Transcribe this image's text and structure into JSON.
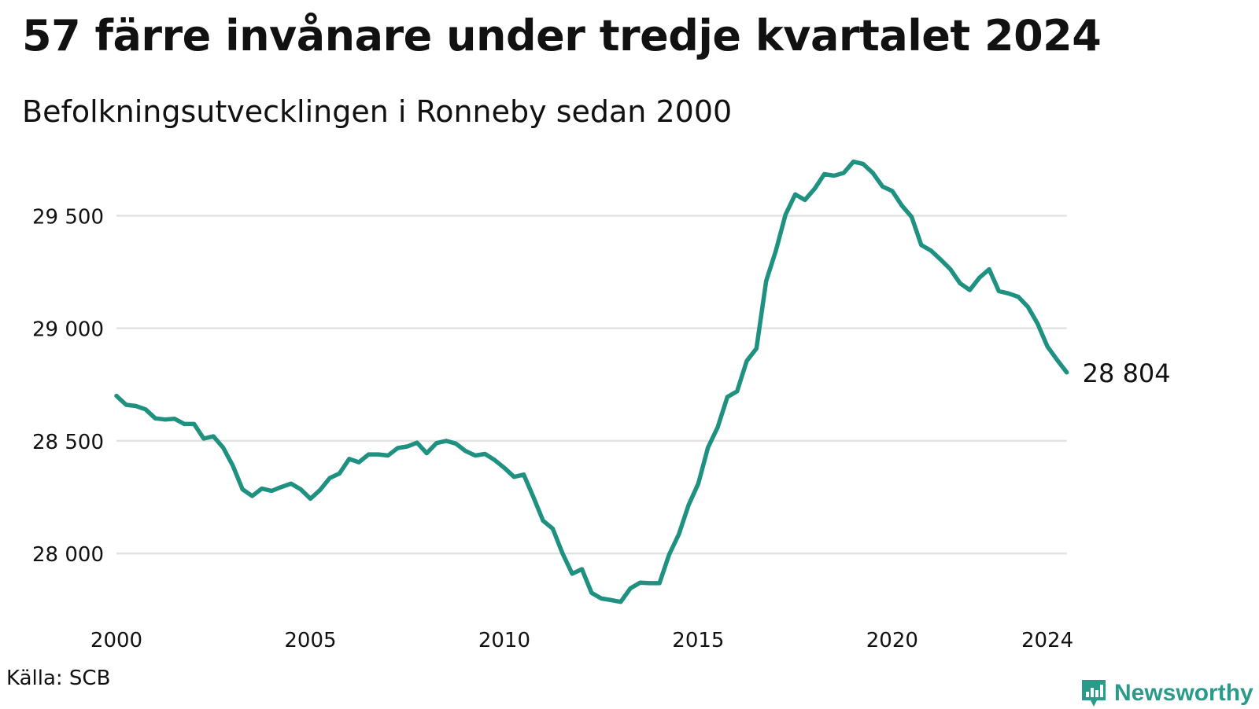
{
  "title": "57 färre invånare under tredje kvartalet 2024",
  "subtitle": "Befolkningsutvecklingen i Ronneby sedan 2000",
  "source": "Källa: SCB",
  "brand": {
    "name": "Newsworthy",
    "icon": "bar-chart-icon",
    "color": "#2a9a8a"
  },
  "colors": {
    "line": "#1f9181",
    "grid": "#e2e2e2",
    "text": "#111111"
  },
  "chart_data": {
    "type": "line",
    "title": "57 färre invånare under tredje kvartalet 2024",
    "subtitle": "Befolkningsutvecklingen i Ronneby sedan 2000",
    "xlabel": "",
    "ylabel": "",
    "xlim": [
      2000,
      2024.75
    ],
    "ylim": [
      27700,
      29760
    ],
    "x_ticks": [
      2000,
      2005,
      2010,
      2015,
      2020,
      2024
    ],
    "y_ticks": [
      28000,
      28500,
      29000,
      29500
    ],
    "y_tick_labels": [
      "28 000",
      "28 500",
      "29 000",
      "29 500"
    ],
    "grid": "horizontal",
    "legend": "none",
    "end_label": "28 804",
    "x": [
      2000,
      2000.25,
      2000.5,
      2000.75,
      2001,
      2001.25,
      2001.5,
      2001.75,
      2002,
      2002.25,
      2002.5,
      2002.75,
      2003,
      2003.25,
      2003.5,
      2003.75,
      2004,
      2004.25,
      2004.5,
      2004.75,
      2005,
      2005.25,
      2005.5,
      2005.75,
      2006,
      2006.25,
      2006.5,
      2006.75,
      2007,
      2007.25,
      2007.5,
      2007.75,
      2008,
      2008.25,
      2008.5,
      2008.75,
      2009,
      2009.25,
      2009.5,
      2009.75,
      2010,
      2010.25,
      2010.5,
      2010.75,
      2011,
      2011.25,
      2011.5,
      2011.75,
      2012,
      2012.25,
      2012.5,
      2012.75,
      2013,
      2013.25,
      2013.5,
      2013.75,
      2014,
      2014.25,
      2014.5,
      2014.75,
      2015,
      2015.25,
      2015.5,
      2015.75,
      2016,
      2016.25,
      2016.5,
      2016.75,
      2017,
      2017.25,
      2017.5,
      2017.75,
      2018,
      2018.25,
      2018.5,
      2018.75,
      2019,
      2019.25,
      2019.5,
      2019.75,
      2020,
      2020.25,
      2020.5,
      2020.75,
      2021,
      2021.25,
      2021.5,
      2021.75,
      2022,
      2022.25,
      2022.5,
      2022.75,
      2023,
      2023.25,
      2023.5,
      2023.75,
      2024,
      2024.25,
      2024.5
    ],
    "series": [
      {
        "values": [
          28700,
          28660,
          28655,
          28640,
          28600,
          28595,
          28598,
          28575,
          28575,
          28510,
          28520,
          28470,
          28390,
          28285,
          28255,
          28288,
          28278,
          28295,
          28310,
          28285,
          28243,
          28282,
          28335,
          28355,
          28420,
          28405,
          28440,
          28440,
          28435,
          28468,
          28475,
          28492,
          28445,
          28490,
          28500,
          28488,
          28455,
          28435,
          28442,
          28415,
          28380,
          28340,
          28350,
          28250,
          28145,
          28110,
          28000,
          27910,
          27930,
          27825,
          27800,
          27793,
          27785,
          27845,
          27870,
          27868,
          27868,
          27995,
          28085,
          28215,
          28310,
          28470,
          28560,
          28695,
          28720,
          28855,
          28910,
          29210,
          29345,
          29505,
          29595,
          29570,
          29620,
          29685,
          29678,
          29690,
          29740,
          29730,
          29690,
          29630,
          29610,
          29545,
          29495,
          29370,
          29345,
          29305,
          29262,
          29200,
          29170,
          29225,
          29262,
          29165,
          29155,
          29140,
          29095,
          29020,
          28920,
          28860,
          28804
        ]
      }
    ]
  }
}
